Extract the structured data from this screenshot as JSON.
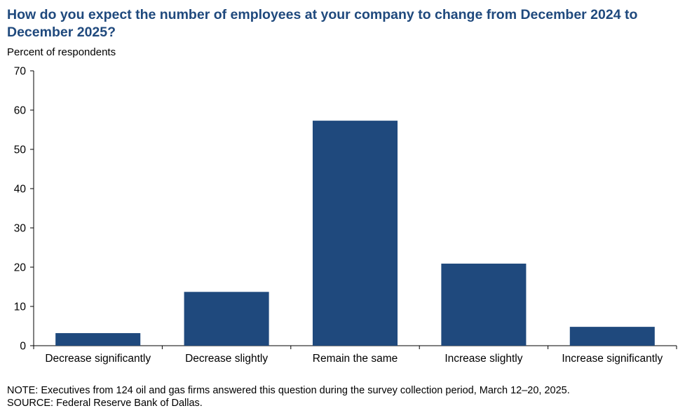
{
  "title": "How do you expect the number of employees at your company to change from December 2024 to December 2025?",
  "notes": {
    "note": "NOTE:  Executives  from 124 oil and gas firms answered this question during the survey collection period, March 12–20, 2025.",
    "source": "SOURCE:  Federal Reserve Bank of Dallas."
  },
  "chart_data": {
    "type": "bar",
    "title": "How do you expect the number of employees at your company to change from December 2024 to December 2025?",
    "xlabel": "",
    "ylabel": "Percent  of respondents",
    "categories": [
      "Decrease significantly",
      "Decrease slightly",
      "Remain the same",
      "Increase slightly",
      "Increase significantly"
    ],
    "values": [
      3.2,
      13.7,
      57.3,
      20.9,
      4.8
    ],
    "ylim": [
      0,
      70
    ],
    "yticks": [
      0,
      10,
      20,
      30,
      40,
      50,
      60,
      70
    ],
    "grid": false,
    "legend": "none",
    "bar_color": "#1f497d"
  }
}
